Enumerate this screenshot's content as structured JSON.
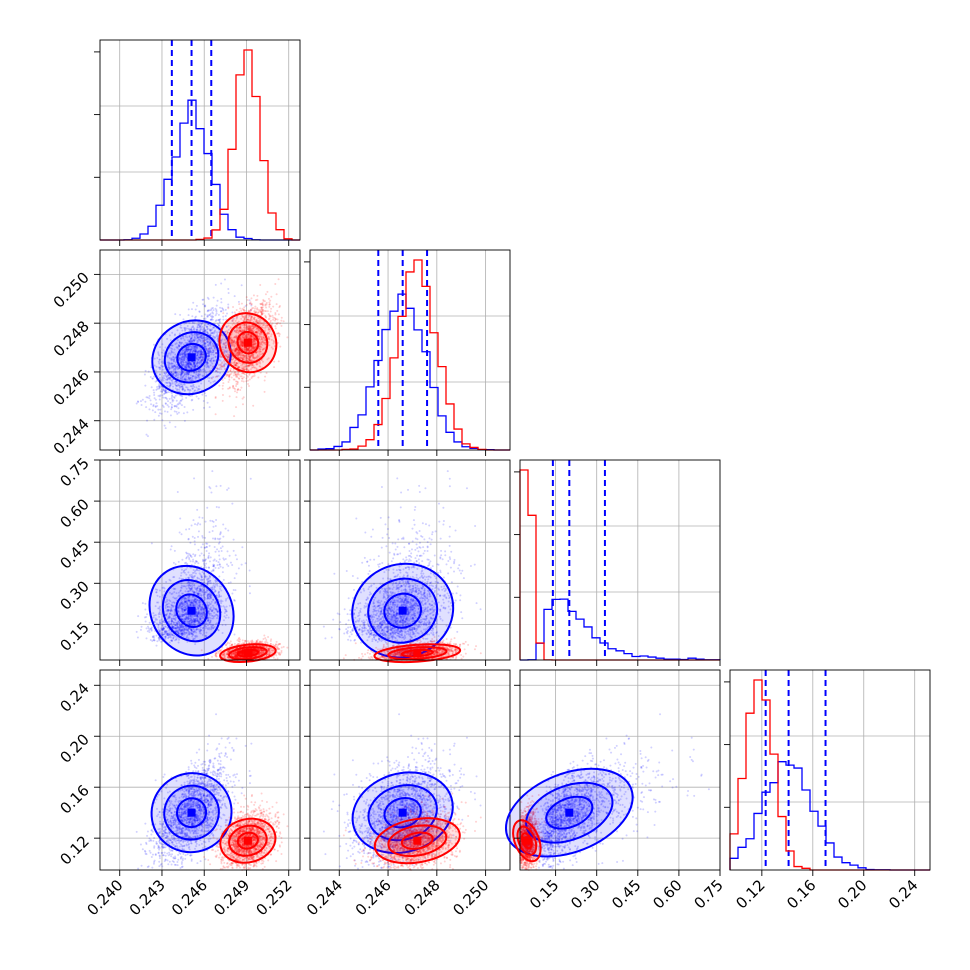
{
  "chart_data": {
    "type": "corner",
    "grid": true,
    "parameters": [
      {
        "range": [
          0.2386,
          0.2528
        ],
        "ticks": [
          0.24,
          0.243,
          0.246,
          0.249,
          0.252
        ],
        "tick_labels": [
          "0.240",
          "0.243",
          "0.246",
          "0.249",
          "0.252"
        ]
      },
      {
        "range": [
          0.2428,
          0.251
        ],
        "ticks": [
          0.244,
          0.246,
          0.248,
          0.25
        ],
        "tick_labels": [
          "0.244",
          "0.246",
          "0.248",
          "0.250"
        ]
      },
      {
        "range": [
          0.02,
          0.75
        ],
        "ticks": [
          0.15,
          0.3,
          0.45,
          0.6,
          0.75
        ],
        "tick_labels": [
          "0.15",
          "0.30",
          "0.45",
          "0.60",
          "0.75"
        ]
      },
      {
        "range": [
          0.095,
          0.252
        ],
        "ticks": [
          0.12,
          0.16,
          0.2,
          0.24
        ],
        "tick_labels": [
          "0.12",
          "0.16",
          "0.20",
          "0.24"
        ]
      }
    ],
    "series": [
      {
        "color": "#0000ff",
        "means": [
          0.2451,
          0.2466,
          0.2,
          0.14
        ],
        "sds": [
          0.0013,
          0.00095,
          0.11,
          0.02
        ],
        "corr": [
          [
            1,
            0.6,
            0.5,
            0.6
          ],
          [
            0.6,
            1,
            0.35,
            0.35
          ],
          [
            0.5,
            0.35,
            1,
            0.6
          ],
          [
            0.6,
            0.35,
            0.6,
            1
          ]
        ],
        "quantiles": [
          [
            0.2437,
            0.2451,
            0.2465
          ],
          [
            0.2456,
            0.2466,
            0.2476
          ],
          [
            0.14,
            0.2,
            0.33
          ],
          [
            0.123,
            0.141,
            0.17
          ]
        ]
      },
      {
        "color": "#ff0000",
        "means": [
          0.2491,
          0.2472,
          0.045,
          0.118
        ],
        "sds": [
          0.0009,
          0.0008,
          0.02,
          0.011
        ],
        "corr": [
          [
            1,
            0.5,
            0.3,
            0.3
          ],
          [
            0.5,
            1,
            0.3,
            0.3
          ],
          [
            0.3,
            0.3,
            1,
            0.2
          ],
          [
            0.3,
            0.3,
            0.2,
            1
          ]
        ],
        "quantiles": []
      }
    ]
  }
}
